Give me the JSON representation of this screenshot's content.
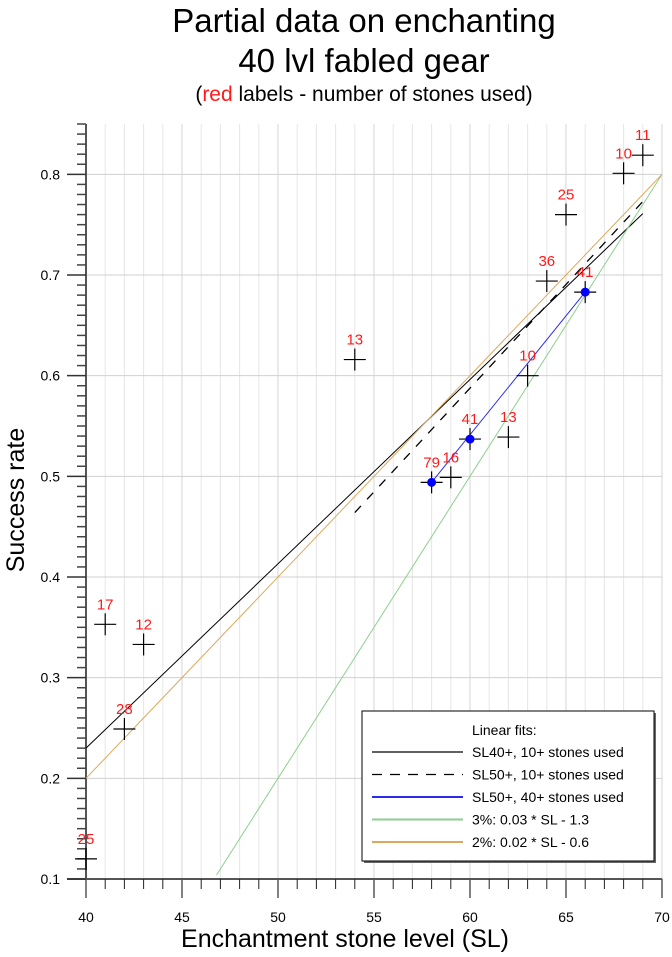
{
  "title": {
    "line1": "Partial data on enchanting",
    "line2": "40 lvl fabled gear",
    "subtitle_open": "(",
    "subtitle_red": "red",
    "subtitle_rest": " labels - number of stones used)"
  },
  "chart_data": {
    "type": "scatter",
    "title": "Partial data on enchanting 40 lvl fabled gear",
    "subtitle": "(red labels - number of stones used)",
    "xlabel": "Enchantment stone level (SL)",
    "ylabel": "Success rate",
    "xlim": [
      40,
      70
    ],
    "ylim": [
      0.1,
      0.85
    ],
    "x_ticks": [
      40,
      45,
      50,
      55,
      60,
      65,
      70
    ],
    "x_tick_labels": [
      "40",
      "45",
      "50",
      "55",
      "60",
      "65",
      "70"
    ],
    "y_ticks": [
      0.1,
      0.2,
      0.3,
      0.4,
      0.5,
      0.6,
      0.7,
      0.8
    ],
    "y_tick_labels": [
      "0.1",
      "0.2",
      "0.3",
      "0.4",
      "0.5",
      "0.6",
      "0.7",
      "0.8"
    ],
    "grid": true,
    "points": [
      {
        "x": 40,
        "y": 0.12,
        "label": "25",
        "highlight": false
      },
      {
        "x": 41,
        "y": 0.353,
        "label": "17",
        "highlight": false
      },
      {
        "x": 42,
        "y": 0.249,
        "label": "28",
        "highlight": false
      },
      {
        "x": 43,
        "y": 0.333,
        "label": "12",
        "highlight": false
      },
      {
        "x": 54,
        "y": 0.616,
        "label": "13",
        "highlight": false
      },
      {
        "x": 58,
        "y": 0.494,
        "label": "79",
        "highlight": true
      },
      {
        "x": 59,
        "y": 0.499,
        "label": "16",
        "highlight": false
      },
      {
        "x": 60,
        "y": 0.537,
        "label": "41",
        "highlight": true
      },
      {
        "x": 62,
        "y": 0.539,
        "label": "13",
        "highlight": false
      },
      {
        "x": 63,
        "y": 0.6,
        "label": "10",
        "highlight": false
      },
      {
        "x": 64,
        "y": 0.694,
        "label": "36",
        "highlight": false
      },
      {
        "x": 65,
        "y": 0.76,
        "label": "25",
        "highlight": false
      },
      {
        "x": 66,
        "y": 0.683,
        "label": "41",
        "highlight": true
      },
      {
        "x": 68,
        "y": 0.801,
        "label": "10",
        "highlight": false
      },
      {
        "x": 69,
        "y": 0.819,
        "label": "11",
        "highlight": false
      }
    ],
    "series": [
      {
        "name": "SL40+, 10+ stones used",
        "style": "solid",
        "color": "#000000",
        "x": [
          40,
          69
        ],
        "y": [
          0.23,
          0.761
        ]
      },
      {
        "name": "SL50+, 10+ stones used",
        "style": "dashed",
        "color": "#000000",
        "x": [
          54,
          69
        ],
        "y": [
          0.464,
          0.773
        ]
      },
      {
        "name": "SL50+, 40+ stones used",
        "style": "solid",
        "color": "#2b2bef",
        "x": [
          58,
          66
        ],
        "y": [
          0.494,
          0.683
        ]
      },
      {
        "name": "3%: 0.03 * SL - 1.3",
        "style": "solid",
        "color": "#8fce8f",
        "x": [
          46.8,
          70
        ],
        "y": [
          0.104,
          0.8
        ]
      },
      {
        "name": "2%: 0.02 * SL - 0.6",
        "style": "solid",
        "color": "#dca85c",
        "x": [
          40,
          70
        ],
        "y": [
          0.2,
          0.8
        ]
      }
    ],
    "legend": {
      "title": "Linear fits:",
      "placement": "bottom-right"
    },
    "label_color": "#ff1a1a",
    "highlight_color": "#0000ff"
  }
}
